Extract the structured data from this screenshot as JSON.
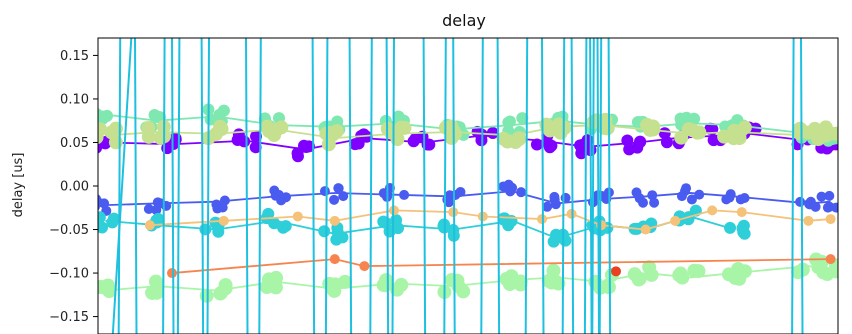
{
  "chart_data": {
    "type": "line",
    "title": "delay",
    "xlabel": "",
    "ylabel": "delay [us]",
    "ylim": [
      -0.17,
      0.17
    ],
    "xlim": [
      0,
      100
    ],
    "yticks": [
      -0.15,
      -0.1,
      -0.05,
      0.0,
      0.05,
      0.1,
      0.15
    ],
    "ytick_labels": [
      "−0.15",
      "−0.10",
      "−0.05",
      "0.00",
      "0.05",
      "0.10",
      "0.15"
    ],
    "grid": false,
    "legend": "none",
    "series": [
      {
        "color": "#8000ff",
        "marker_size": 6,
        "dense_markers": true,
        "x": [
          1,
          10,
          20,
          28,
          36,
          44,
          52,
          60,
          66,
          73,
          78,
          84,
          88,
          96,
          99
        ],
        "y": [
          0.05,
          0.048,
          0.052,
          0.042,
          0.055,
          0.05,
          0.058,
          0.052,
          0.045,
          0.05,
          0.055,
          0.058,
          0.06,
          0.052,
          0.05
        ]
      },
      {
        "color": "#4a5cf0",
        "marker_size": 5,
        "dense_markers": true,
        "x": [
          1,
          8,
          16,
          24,
          32,
          40,
          48,
          56,
          62,
          68,
          74,
          80,
          86,
          96,
          99
        ],
        "y": [
          -0.022,
          -0.02,
          -0.018,
          -0.012,
          -0.008,
          -0.01,
          -0.012,
          -0.006,
          -0.02,
          -0.015,
          -0.012,
          -0.008,
          -0.012,
          -0.02,
          -0.018
        ]
      },
      {
        "color": "#2ecfd8",
        "marker_size": 6,
        "dense_markers": true,
        "x": [
          1,
          8,
          16,
          24,
          32,
          40,
          48,
          56,
          62,
          68,
          74,
          80,
          86
        ],
        "y": [
          -0.04,
          -0.045,
          -0.05,
          -0.04,
          -0.055,
          -0.045,
          -0.05,
          -0.04,
          -0.06,
          -0.045,
          -0.05,
          -0.035,
          -0.05
        ]
      },
      {
        "color": "#7fe8b0",
        "marker_size": 6,
        "dense_markers": true,
        "x": [
          1,
          8,
          16,
          24,
          32,
          40,
          48,
          56,
          62,
          68,
          74,
          80,
          86,
          96,
          99
        ],
        "y": [
          0.082,
          0.075,
          0.08,
          0.07,
          0.068,
          0.072,
          0.065,
          0.07,
          0.075,
          0.07,
          0.068,
          0.072,
          0.07,
          0.06,
          0.058
        ]
      },
      {
        "color": "#c5e08f",
        "marker_size": 7,
        "dense_markers": true,
        "x": [
          1,
          8,
          16,
          24,
          32,
          40,
          48,
          56,
          62,
          68,
          74,
          80,
          86,
          96,
          99
        ],
        "y": [
          0.058,
          0.062,
          0.06,
          0.065,
          0.055,
          0.06,
          0.062,
          0.058,
          0.068,
          0.07,
          0.065,
          0.06,
          0.062,
          0.058,
          0.06
        ]
      },
      {
        "color": "#a8f5a8",
        "marker_size": 7,
        "dense_markers": true,
        "x": [
          1,
          8,
          16,
          24,
          32,
          40,
          48,
          56,
          62,
          68,
          74,
          80,
          86,
          96,
          99
        ],
        "y": [
          -0.12,
          -0.115,
          -0.12,
          -0.11,
          -0.118,
          -0.112,
          -0.115,
          -0.108,
          -0.105,
          -0.11,
          -0.1,
          -0.105,
          -0.1,
          -0.092,
          -0.095
        ]
      },
      {
        "color": "#f5c27a",
        "marker_size": 5,
        "dense_markers": false,
        "x": [
          7,
          17,
          27,
          32,
          40,
          48,
          52,
          60,
          64,
          68,
          74,
          78,
          83,
          87,
          96,
          99
        ],
        "y": [
          -0.045,
          -0.04,
          -0.035,
          -0.04,
          -0.028,
          -0.03,
          -0.035,
          -0.038,
          -0.032,
          -0.045,
          -0.05,
          -0.04,
          -0.028,
          -0.03,
          -0.04,
          -0.038
        ]
      },
      {
        "color": "#f7844e",
        "marker_size": 5,
        "dense_markers": false,
        "x": [
          10,
          32,
          36,
          99
        ],
        "y": [
          -0.1,
          -0.084,
          -0.092,
          -0.084
        ]
      },
      {
        "color": "#e84020",
        "marker_size": 5,
        "dense_markers": false,
        "x": [
          70
        ],
        "y": [
          -0.098
        ]
      }
    ],
    "spike_series": {
      "color": "#1ec0e0",
      "x": [
        3,
        5,
        9,
        10,
        11,
        14,
        15,
        20,
        22,
        29,
        31,
        34,
        37,
        39,
        40,
        44,
        47,
        48,
        52,
        54,
        58,
        60,
        63,
        64,
        66,
        66.5,
        67,
        67.5,
        68,
        69,
        94,
        95
      ]
    }
  }
}
